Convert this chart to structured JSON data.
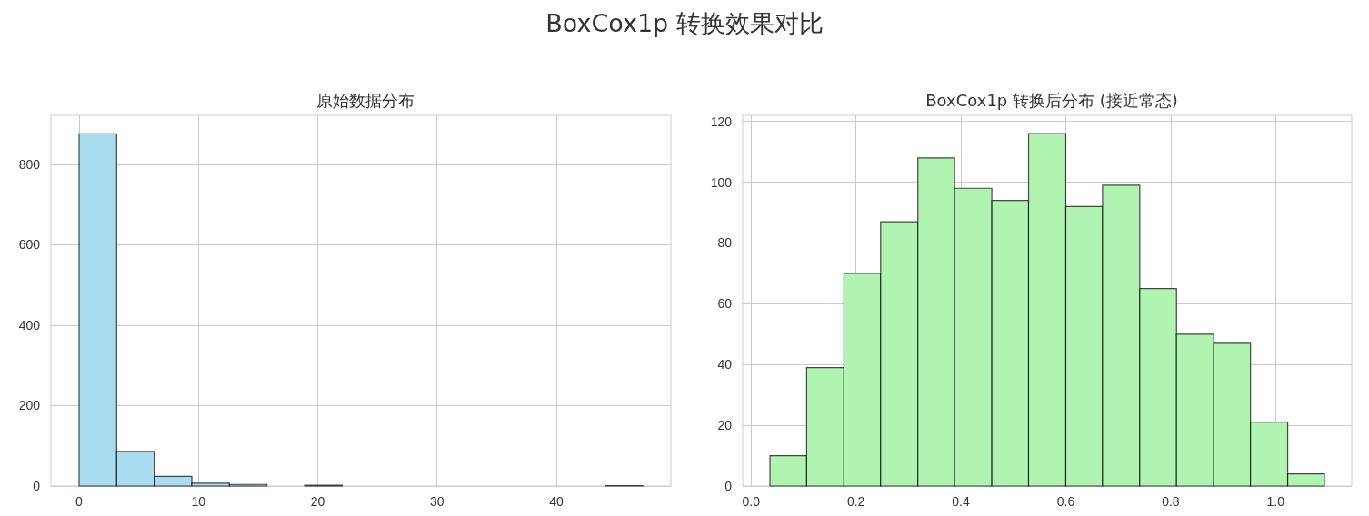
{
  "chart_data": [
    {
      "type": "histogram",
      "title": "原始数据分布",
      "annotations": [
        "BoxCox1p 转换效果对比"
      ],
      "color": "#a9dcef",
      "bins": [
        0,
        3.15,
        6.3,
        9.45,
        12.6,
        15.75,
        18.9,
        22.05,
        25.2,
        28.35,
        31.5,
        34.65,
        37.8,
        40.95,
        44.1,
        47.25
      ],
      "values": [
        876,
        86,
        24,
        7,
        4,
        0,
        2,
        0,
        0,
        0,
        0,
        0,
        0,
        0,
        1
      ],
      "xlim": [
        -2.36,
        49.6
      ],
      "xticks": [
        0,
        10,
        20,
        30,
        40
      ],
      "ylim": [
        0,
        922
      ],
      "yticks": [
        0,
        200,
        400,
        600,
        800
      ],
      "grid": true
    },
    {
      "type": "histogram",
      "title": "BoxCox1p 转换后分布 (接近常态)",
      "color": "#b1f3b1",
      "bins": [
        0.036,
        0.106,
        0.177,
        0.247,
        0.318,
        0.388,
        0.459,
        0.529,
        0.6,
        0.67,
        0.741,
        0.811,
        0.882,
        0.952,
        1.023,
        1.093
      ],
      "values": [
        10,
        39,
        70,
        87,
        108,
        98,
        94,
        116,
        92,
        99,
        65,
        50,
        47,
        21,
        4
      ],
      "xlim": [
        -0.016,
        1.145
      ],
      "xticks": [
        {
          "value": 0,
          "label": "0.0"
        },
        {
          "value": 0.2,
          "label": "0.2"
        },
        {
          "value": 0.4,
          "label": "0.4"
        },
        {
          "value": 0.6,
          "label": "0.6"
        },
        {
          "value": 0.8,
          "label": "0.8"
        },
        {
          "value": 1,
          "label": "1.0"
        }
      ],
      "ylim": [
        0,
        122
      ],
      "yticks": [
        0,
        20,
        40,
        60,
        80,
        100,
        120
      ],
      "grid": true
    }
  ]
}
